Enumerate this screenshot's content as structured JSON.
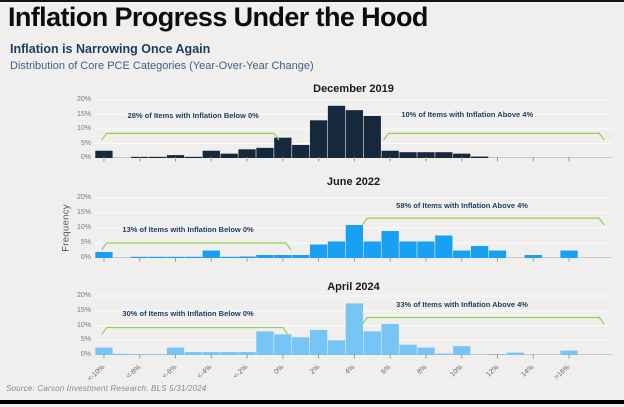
{
  "page": {
    "title": "Inflation Progress Under the Hood",
    "subtitle": "Inflation is Narrowing Once Again",
    "description": "Distribution of Core PCE Categories (Year-Over-Year Change)",
    "y_axis_label": "Frequency",
    "source": "Source: Carson Investment Research, BLS 5/31/2024"
  },
  "colors": {
    "december_bars": "#16293c",
    "june_bars": "#18a0f2",
    "april_bars": "#76c5f5",
    "bracket_green": "#8ed05a",
    "annotation_navy": "#1d3c5f"
  },
  "chart_data": [
    {
      "type": "bar",
      "title": "December 2019",
      "categories": [
        "<-10%",
        "<-8%",
        "<-6%",
        "<-4%",
        "<-2%",
        "0%",
        "2%",
        "4%",
        "6%",
        "8%",
        "10%",
        "12%",
        "14%",
        ">16%"
      ],
      "values": [
        2.5,
        0,
        0.4,
        0.4,
        1.0,
        0.4,
        2.5,
        1.5,
        3.0,
        3.5,
        7.0,
        4.5,
        13.0,
        18.0,
        16.5,
        14.5,
        2.5,
        2.0,
        2.0,
        2.0,
        1.5,
        0.5,
        0,
        0,
        0,
        0,
        0
      ],
      "xlabel": "",
      "ylabel": "Frequency",
      "ylim": [
        0,
        20
      ],
      "y_ticks": [
        "0%",
        "5%",
        "10%",
        "15%",
        "20%"
      ],
      "grid": true,
      "bar_color": "#16293c",
      "annotations": {
        "below": "28% of Items with Inflation Below 0%",
        "above": "10% of Items with Inflation Above 4%"
      }
    },
    {
      "type": "bar",
      "title": "June 2022",
      "categories": [
        "<-10%",
        "<-8%",
        "<-6%",
        "<-4%",
        "<-2%",
        "0%",
        "2%",
        "4%",
        "6%",
        "8%",
        "10%",
        "12%",
        "14%",
        ">16%"
      ],
      "values": [
        2.0,
        0,
        0.4,
        0.4,
        0.4,
        0.4,
        2.5,
        0.4,
        0.5,
        1.0,
        1.0,
        1.0,
        4.5,
        5.5,
        11.0,
        5.5,
        9.0,
        5.5,
        5.5,
        7.5,
        2.5,
        4.0,
        2.5,
        0,
        1.0,
        0,
        2.5
      ],
      "xlabel": "",
      "ylabel": "Frequency",
      "ylim": [
        0,
        20
      ],
      "y_ticks": [
        "0%",
        "5%",
        "10%",
        "15%",
        "20%"
      ],
      "grid": true,
      "bar_color": "#18a0f2",
      "annotations": {
        "below": "13% of Items with Inflation Below 0%",
        "above": "58% of Items with Inflation Above 4%"
      }
    },
    {
      "type": "bar",
      "title": "April 2024",
      "categories": [
        "<-10%",
        "<-8%",
        "<-6%",
        "<-4%",
        "<-2%",
        "0%",
        "2%",
        "4%",
        "6%",
        "8%",
        "10%",
        "12%",
        "14%",
        ">16%"
      ],
      "values": [
        2.5,
        0.4,
        0.2,
        0.2,
        2.5,
        1.0,
        1.0,
        1.0,
        1.0,
        8.0,
        7.0,
        6.0,
        8.5,
        5.0,
        17.5,
        8.0,
        10.5,
        3.5,
        2.5,
        0.5,
        3.0,
        0,
        0.3,
        0.8,
        0,
        0,
        1.5
      ],
      "xlabel": "",
      "ylabel": "Frequency",
      "ylim": [
        0,
        20
      ],
      "y_ticks": [
        "0%",
        "5%",
        "10%",
        "15%",
        "20%"
      ],
      "grid": true,
      "bar_color": "#76c5f5",
      "annotations": {
        "below": "30% of Items with Inflation Below 0%",
        "above": "33% of Items with Inflation Above 4%"
      }
    }
  ]
}
